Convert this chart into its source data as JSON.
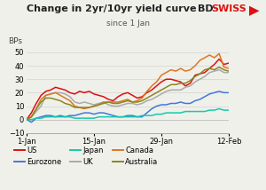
{
  "title": "Change in 2yr/10yr yield curve",
  "subtitle": "since 1 Jan",
  "ylabel": "BPs",
  "xlim": [
    0,
    42
  ],
  "ylim": [
    -10,
    55
  ],
  "yticks": [
    -10,
    0,
    10,
    20,
    30,
    40,
    50
  ],
  "xtick_positions": [
    0,
    14,
    28,
    42
  ],
  "xtick_labels": [
    "1-Jan",
    "15-Jan",
    "29-Jan",
    "12-Feb"
  ],
  "series": {
    "US": {
      "color": "#dd1111",
      "values": [
        0,
        5,
        12,
        18,
        21,
        22,
        24,
        23,
        22,
        20,
        19,
        21,
        20,
        21,
        19,
        18,
        17,
        15,
        14,
        17,
        19,
        20,
        18,
        16,
        17,
        20,
        22,
        25,
        28,
        30,
        30,
        29,
        28,
        25,
        27,
        33,
        34,
        35,
        38,
        41,
        45,
        41,
        42
      ]
    },
    "UK": {
      "color": "#aaaaaa",
      "values": [
        0,
        2,
        6,
        10,
        18,
        19,
        20,
        20,
        19,
        17,
        13,
        12,
        13,
        12,
        11,
        12,
        13,
        11,
        10,
        10,
        11,
        12,
        12,
        11,
        12,
        14,
        15,
        17,
        19,
        21,
        22,
        22,
        22,
        24,
        25,
        28,
        30,
        32,
        35,
        36,
        37,
        35,
        35
      ]
    },
    "Eurozone": {
      "color": "#4477dd",
      "values": [
        0,
        -2,
        1,
        2,
        3,
        3,
        2,
        3,
        2,
        3,
        3,
        4,
        5,
        5,
        4,
        5,
        5,
        4,
        3,
        2,
        2,
        3,
        3,
        2,
        2,
        5,
        8,
        10,
        11,
        11,
        12,
        12,
        13,
        12,
        12,
        14,
        15,
        17,
        19,
        20,
        21,
        20,
        20
      ]
    },
    "Canada": {
      "color": "#dd7722",
      "values": [
        0,
        2,
        8,
        15,
        18,
        19,
        20,
        18,
        16,
        14,
        10,
        9,
        8,
        9,
        10,
        11,
        13,
        13,
        13,
        13,
        14,
        15,
        13,
        14,
        16,
        21,
        25,
        28,
        33,
        35,
        37,
        36,
        38,
        36,
        37,
        40,
        44,
        46,
        48,
        46,
        49,
        39,
        38
      ]
    },
    "Japan": {
      "color": "#11ccaa",
      "values": [
        0,
        0,
        1,
        1,
        2,
        2,
        2,
        2,
        2,
        2,
        1,
        1,
        1,
        1,
        1,
        2,
        2,
        2,
        2,
        2,
        2,
        2,
        2,
        2,
        3,
        3,
        3,
        4,
        4,
        5,
        5,
        5,
        5,
        6,
        6,
        6,
        6,
        6,
        7,
        7,
        8,
        7,
        7
      ]
    },
    "Australia": {
      "color": "#888820",
      "values": [
        0,
        2,
        8,
        13,
        16,
        16,
        15,
        14,
        12,
        11,
        9,
        9,
        9,
        9,
        10,
        11,
        12,
        13,
        12,
        12,
        13,
        14,
        13,
        13,
        14,
        16,
        18,
        20,
        22,
        24,
        26,
        26,
        27,
        27,
        29,
        32,
        34,
        37,
        38,
        37,
        39,
        37,
        36
      ]
    }
  },
  "legend_order": [
    "US",
    "Eurozone",
    "Japan",
    "UK",
    "Canada",
    "Australia"
  ],
  "background_color": "#f0f0eb",
  "brand_bd_color": "#222222",
  "brand_swiss_color": "#dd1111",
  "title_fontsize": 8.0,
  "subtitle_fontsize": 6.5,
  "tick_fontsize": 6.0,
  "ylabel_fontsize": 6.5,
  "legend_fontsize": 6.0
}
